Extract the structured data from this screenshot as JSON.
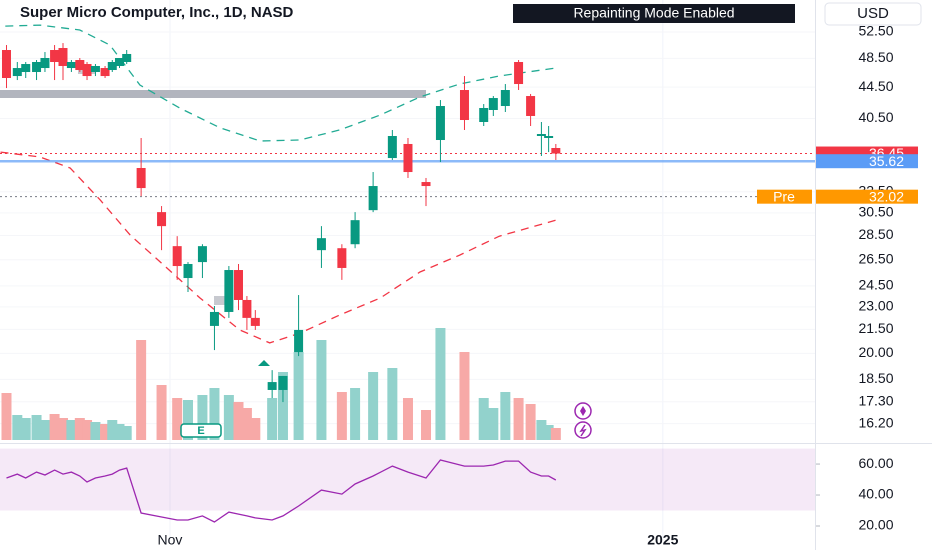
{
  "chart_data": {
    "type": "candlestick",
    "title": "Super Micro Computer, Inc., 1D, NASD",
    "notice": "Repainting Mode Enabled",
    "currency": "USD",
    "earnings_label": "E",
    "log_scale": true,
    "grid": true,
    "colors": {
      "up": "#089981",
      "down": "#f23645",
      "volume_up": "#92d2cc",
      "volume_down": "#f7a9a7"
    },
    "xlim": [
      -0.14,
      67.66
    ],
    "xticks": [
      {
        "value": 14,
        "label": "Nov"
      },
      {
        "value": 55,
        "label": "2025"
      }
    ],
    "ylim": [
      15.42,
      57.8
    ],
    "yticks": [
      {
        "value": 52.5,
        "label": "52.50"
      },
      {
        "value": 48.5,
        "label": "48.50"
      },
      {
        "value": 44.5,
        "label": "44.50"
      },
      {
        "value": 40.5,
        "label": "40.50"
      },
      {
        "value": 32.5,
        "label": "32.50"
      },
      {
        "value": 30.5,
        "label": "30.50"
      },
      {
        "value": 28.5,
        "label": "28.50"
      },
      {
        "value": 26.5,
        "label": "26.50"
      },
      {
        "value": 24.5,
        "label": "24.50"
      },
      {
        "value": 23,
        "label": "23.00"
      },
      {
        "value": 21.5,
        "label": "21.50"
      },
      {
        "value": 20,
        "label": "20.00"
      },
      {
        "value": 18.5,
        "label": "18.50"
      },
      {
        "value": 17.3,
        "label": "17.30"
      },
      {
        "value": 16.2,
        "label": "16.20"
      }
    ],
    "x": [
      0.4,
      1.3,
      2.0,
      2.9,
      3.6,
      4.4,
      5.1,
      5.8,
      6.5,
      7.1,
      7.8,
      8.6,
      9.2,
      9.8,
      10.4,
      11.6,
      13.3,
      14.6,
      15.5,
      16.7,
      17.7,
      18.9,
      19.7,
      20.4,
      21.1,
      22.5,
      23.4,
      24.7,
      26.6,
      28.3,
      29.4,
      30.9,
      32.5,
      33.8,
      35.3,
      36.5,
      38.5,
      40.1,
      40.9,
      41.9,
      43.0,
      44.0,
      44.9,
      45.5,
      46.1
    ],
    "open": [
      49.74,
      46.0,
      46.56,
      46.56,
      47.12,
      49.74,
      50.04,
      47.12,
      48.27,
      47.69,
      46.56,
      47.12,
      46.84,
      47.41,
      47.98,
      34.9,
      30.57,
      27.6,
      25.08,
      26.31,
      21.72,
      22.65,
      25.69,
      23.48,
      22.25,
      17.92,
      17.92,
      20.08,
      27.27,
      27.43,
      27.76,
      30.75,
      35.96,
      37.51,
      33.46,
      37.96,
      44.11,
      40.07,
      41.54,
      42.04,
      47.98,
      43.32,
      38.42,
      38.19,
      37.06
    ],
    "high": [
      50.49,
      47.98,
      47.98,
      48.27,
      49.44,
      50.49,
      50.79,
      48.27,
      48.56,
      47.98,
      47.69,
      47.41,
      48.27,
      48.56,
      49.74,
      38.19,
      31.13,
      28.44,
      26.31,
      27.76,
      23.06,
      26.0,
      26.16,
      23.76,
      22.78,
      19.02,
      18.69,
      23.83,
      29.31,
      27.76,
      30.57,
      34.48,
      39.12,
      38.19,
      33.87,
      42.8,
      46.0,
      42.29,
      43.32,
      44.91,
      48.27,
      43.59,
      40.07,
      39.59,
      37.51
    ],
    "low": [
      44.37,
      45.45,
      45.73,
      45.45,
      46.56,
      45.45,
      45.45,
      46.56,
      46.56,
      45.45,
      46.0,
      45.73,
      46.56,
      47.12,
      47.69,
      32.08,
      27.27,
      24.94,
      24.05,
      25.08,
      20.2,
      22.25,
      22.78,
      21.46,
      21.46,
      17.49,
      17.28,
      19.84,
      25.85,
      24.94,
      27.43,
      30.57,
      35.75,
      33.87,
      31.13,
      35.53,
      39.12,
      39.59,
      40.8,
      41.29,
      44.11,
      39.59,
      36.18,
      36.61,
      35.75
    ],
    "close": [
      45.73,
      47.12,
      47.69,
      47.98,
      48.56,
      47.98,
      47.41,
      47.98,
      46.84,
      46.0,
      47.41,
      46.0,
      47.98,
      48.56,
      49.15,
      32.86,
      29.31,
      26.0,
      26.16,
      27.6,
      22.65,
      25.69,
      23.48,
      22.25,
      21.72,
      18.35,
      18.69,
      21.46,
      28.27,
      25.85,
      29.84,
      33.06,
      38.42,
      34.48,
      33.06,
      42.04,
      40.31,
      41.79,
      43.06,
      44.11,
      44.91,
      40.8,
      38.65,
      38.42,
      36.45
    ],
    "volume": [
      141,
      75,
      66,
      75,
      60,
      78,
      66,
      60,
      66,
      60,
      54,
      48,
      60,
      48,
      42,
      300,
      165,
      126,
      120,
      135,
      156,
      135,
      114,
      96,
      66,
      126,
      204,
      264,
      300,
      144,
      156,
      204,
      216,
      126,
      90,
      336,
      264,
      126,
      96,
      144,
      126,
      108,
      60,
      45,
      36
    ],
    "volume_ylim": [
      0,
      1320
    ],
    "series": [
      {
        "color": "#22ab94",
        "x": [
          0.3,
          3.2,
          6.5,
          9.0,
          11.5,
          14.8,
          18.2,
          21.5,
          24.8,
          28.1,
          31.5,
          34.8,
          38.1,
          41.4,
          46.1
        ],
        "values": [
          53.45,
          53.61,
          52.82,
          50.49,
          44.78,
          41.79,
          39.35,
          37.85,
          37.96,
          39.12,
          40.92,
          43.19,
          44.91,
          46.0,
          47.12
        ]
      },
      {
        "color": "#f23645",
        "x": [
          -0.1,
          3.2,
          5.7,
          8.2,
          10.7,
          13.2,
          16.5,
          19.8,
          22.3,
          24.8,
          28.1,
          31.5,
          34.8,
          38.1,
          41.4,
          46.1
        ],
        "values": [
          36.61,
          36.07,
          34.9,
          31.69,
          28.52,
          26.31,
          23.62,
          21.46,
          20.64,
          21.25,
          22.44,
          23.62,
          25.54,
          26.87,
          28.44,
          29.84
        ]
      }
    ],
    "price_lines": [
      {
        "value": 36.45,
        "color": "#f23645",
        "style": "dotted"
      },
      {
        "value": 35.62,
        "color": "#5b9cf6",
        "style": "solid"
      },
      {
        "value": 32.02,
        "label": "Pre",
        "color": "#ff9800",
        "line_color": "#787b86",
        "style": "dotted"
      }
    ],
    "rsi": {
      "color": "#9c27b0",
      "band": [
        30,
        70
      ],
      "ylim": [
        11.6,
        72.3
      ],
      "yticks": [
        {
          "value": 60,
          "label": "60.00"
        },
        {
          "value": 40,
          "label": "40.00"
        },
        {
          "value": 20,
          "label": "20.00"
        }
      ],
      "values": [
        51.0,
        53.5,
        51.0,
        54.8,
        52.9,
        56.1,
        53.5,
        54.8,
        52.3,
        48.4,
        51.0,
        52.3,
        53.5,
        56.1,
        57.4,
        28.4,
        25.8,
        23.9,
        23.9,
        26.5,
        22.6,
        29.0,
        27.7,
        26.5,
        25.2,
        23.9,
        26.5,
        32.9,
        43.2,
        40.6,
        47.1,
        52.3,
        58.7,
        54.8,
        51.0,
        62.6,
        58.7,
        58.7,
        59.4,
        61.9,
        61.9,
        54.8,
        52.3,
        52.3,
        49.7
      ]
    }
  }
}
